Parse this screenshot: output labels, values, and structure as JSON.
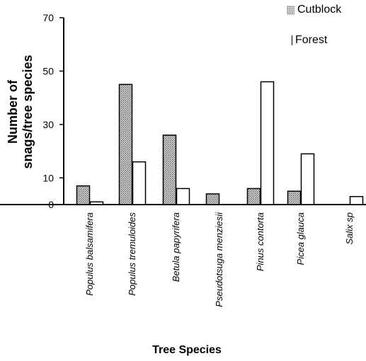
{
  "chart_data": {
    "type": "bar",
    "xlabel": "Tree Species",
    "ylabel": "Number of snags/tree species",
    "ylim": [
      0,
      70
    ],
    "y_ticks": [
      0,
      10,
      30,
      50,
      70
    ],
    "categories": [
      "Populus balsamifera",
      "Populus tremuloides",
      "Betula papyrifera",
      "Pseudotsuga menziesii",
      "Pinus contorta",
      "Picea glauca",
      "Salix sp"
    ],
    "series": [
      {
        "name": "Cutblock",
        "values": [
          7,
          45,
          26,
          4,
          6,
          5,
          0
        ],
        "color": "#b8b8b8",
        "pattern": "stippled"
      },
      {
        "name": "Forest",
        "values": [
          1,
          16,
          6,
          0,
          46,
          19,
          3
        ],
        "color": "#ffffff",
        "pattern": "none"
      }
    ],
    "legend": "top-right",
    "grid": false
  }
}
